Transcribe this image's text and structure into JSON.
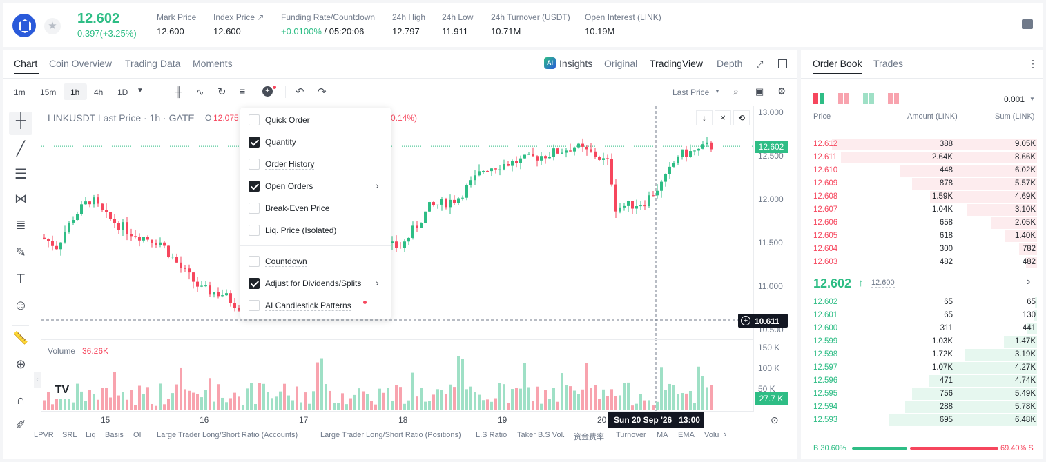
{
  "header": {
    "last_price": "12.602",
    "change": "0.397(+3.25%)",
    "stats": [
      {
        "label": "Mark Price",
        "value": "12.600"
      },
      {
        "label": "Index Price ↗",
        "value": "12.600"
      },
      {
        "label": "Funding Rate/Countdown",
        "value_a": "+0.0100%",
        "value_b": " / 05:20:06"
      },
      {
        "label": "24h High",
        "value": "12.797"
      },
      {
        "label": "24h Low",
        "value": "11.911"
      },
      {
        "label": "24h Turnover (USDT)",
        "value": "10.71M"
      },
      {
        "label": "Open Interest (LINK)",
        "value": "10.19M"
      }
    ]
  },
  "chart_tabs": [
    "Chart",
    "Coin Overview",
    "Trading Data",
    "Moments"
  ],
  "view_tabs": [
    "Insights",
    "Original",
    "TradingView",
    "Depth"
  ],
  "intervals": [
    "1m",
    "15m",
    "1h",
    "4h",
    "1D"
  ],
  "price_type": "Last Price",
  "legend": {
    "symbol": "LINKUSDT Last Price · 1h · GATE",
    "o": "O",
    "o_val": "12.075",
    "pct": "0.14%)"
  },
  "volume": {
    "label": "Volume",
    "value": "36.26K"
  },
  "menu": {
    "items": [
      "Quick Order",
      "Quantity",
      "Order History",
      "Open Orders",
      "Break-Even Price",
      "Liq. Price (Isolated)",
      "Countdown",
      "Adjust for Dividends/Splits",
      "AI Candlestick Patterns"
    ]
  },
  "y_ticks": [
    "13.000",
    "12.500",
    "12.000",
    "11.500",
    "11.000",
    "10.500"
  ],
  "vol_ticks": [
    "150 K",
    "100 K",
    "50 K"
  ],
  "price_tag": "12.602",
  "cross_tag": "10.611",
  "vol_tag": "27.7 K",
  "x_ticks": [
    "15",
    "16",
    "17",
    "18",
    "19",
    "20"
  ],
  "crosshair_time": "Sun 20 Sep '26   13:00",
  "bottom_tabs": [
    "LPVR",
    "SRL",
    "Liq",
    "Basis",
    "OI",
    "Large Trader Long/Short Ratio (Accounts)",
    "Large Trader Long/Short Ratio (Positions)",
    "L.S Ratio",
    "Taker B.S Vol.",
    "资金费率",
    "Turnover",
    "MA",
    "EMA",
    "Volu"
  ],
  "orderbook": {
    "tabs": [
      "Order Book",
      "Trades"
    ],
    "precision": "0.001",
    "headers": [
      "Price",
      "Amount (LINK)",
      "Sum (LINK)"
    ],
    "asks": [
      [
        "12.612",
        "388",
        "9.05K",
        0.9
      ],
      [
        "12.611",
        "2.64K",
        "8.66K",
        0.86
      ],
      [
        "12.610",
        "448",
        "6.02K",
        0.6
      ],
      [
        "12.609",
        "878",
        "5.57K",
        0.55
      ],
      [
        "12.608",
        "1.59K",
        "4.69K",
        0.47
      ],
      [
        "12.607",
        "1.04K",
        "3.10K",
        0.31
      ],
      [
        "12.606",
        "658",
        "2.05K",
        0.2
      ],
      [
        "12.605",
        "618",
        "1.40K",
        0.14
      ],
      [
        "12.604",
        "300",
        "782",
        0.08
      ],
      [
        "12.603",
        "482",
        "482",
        0.05
      ]
    ],
    "mid": "12.602",
    "mark": "12.600",
    "bids": [
      [
        "12.602",
        "65",
        "65",
        0.01
      ],
      [
        "12.601",
        "65",
        "130",
        0.013
      ],
      [
        "12.600",
        "311",
        "441",
        0.044
      ],
      [
        "12.599",
        "1.03K",
        "1.47K",
        0.147
      ],
      [
        "12.598",
        "1.72K",
        "3.19K",
        0.319
      ],
      [
        "12.597",
        "1.07K",
        "4.27K",
        0.427
      ],
      [
        "12.596",
        "471",
        "4.74K",
        0.474
      ],
      [
        "12.595",
        "756",
        "5.49K",
        0.549
      ],
      [
        "12.594",
        "288",
        "5.78K",
        0.578
      ],
      [
        "12.593",
        "695",
        "6.48K",
        0.648
      ]
    ],
    "buy_pct": "B 30.60%",
    "sell_pct": "69.40% S",
    "buy_ratio": 0.306
  }
}
